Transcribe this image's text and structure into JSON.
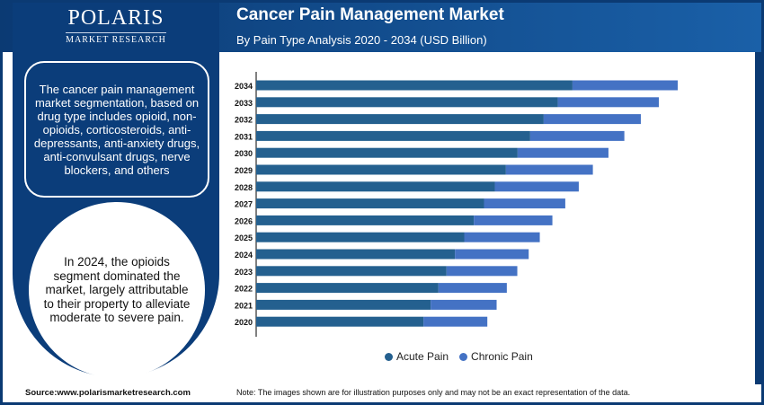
{
  "logo": {
    "name": "POLARIS",
    "tagline": "MARKET RESEARCH"
  },
  "panel": {
    "box_text": "The cancer pain management market segmentation, based on drug type includes opioid, non-opioids, corticosteroids, anti-depressants, anti-anxiety drugs, anti-convulsant drugs, nerve blockers, and others",
    "circle_text": "In 2024, the opioids segment dominated the market, largely attributable to their property to alleviate moderate to severe pain."
  },
  "footer": {
    "source": "Source:www.polarismarketresearch.com",
    "note": "Note: The images shown are for illustration purposes only and may not be an exact representation of the data."
  },
  "chart_data": {
    "type": "bar",
    "orientation": "horizontal",
    "stacked": true,
    "title": "Cancer Pain Management Market",
    "subtitle": "By Pain Type Analysis 2020 - 2034 (USD Billion)",
    "categories": [
      "2034",
      "2033",
      "2032",
      "2031",
      "2030",
      "2029",
      "2028",
      "2027",
      "2026",
      "2025",
      "2024",
      "2023",
      "2022",
      "2021",
      "2020"
    ],
    "series": [
      {
        "name": "Acute Pain",
        "color": "#24608f",
        "values": [
          10.55,
          10.06,
          9.59,
          9.14,
          8.72,
          8.33,
          7.96,
          7.6,
          7.26,
          6.94,
          6.63,
          6.35,
          6.08,
          5.82,
          5.58
        ]
      },
      {
        "name": "Chronic Pain",
        "color": "#4472c4",
        "values": [
          3.51,
          3.37,
          3.24,
          3.14,
          3.03,
          2.9,
          2.8,
          2.71,
          2.62,
          2.52,
          2.46,
          2.36,
          2.28,
          2.2,
          2.13
        ]
      }
    ],
    "xlim": [
      0,
      14.06
    ],
    "grid": false,
    "legend_position": "bottom"
  }
}
